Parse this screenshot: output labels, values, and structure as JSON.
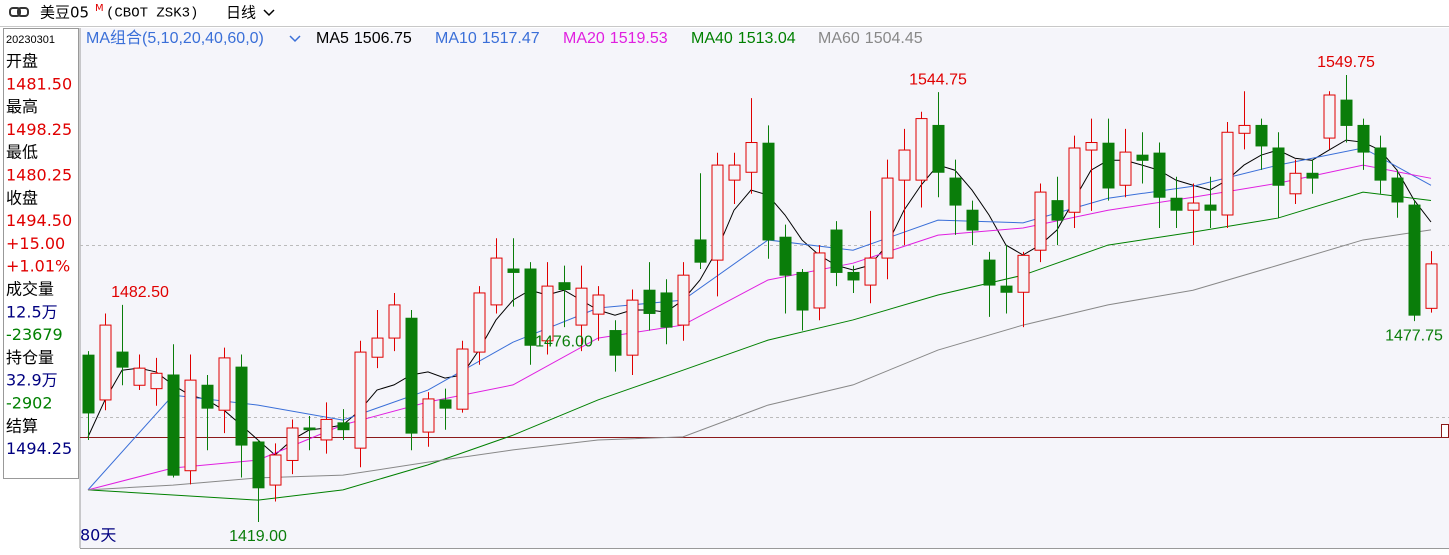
{
  "header": {
    "symbol": "美豆05",
    "symbol_sup": "M",
    "code": "(CBOT ZSK3)",
    "timeframe": "日线"
  },
  "info_panel": {
    "date": "20230301",
    "rows": [
      {
        "text": "开盘",
        "color": "#000000"
      },
      {
        "text": "1481.50",
        "color": "#e00000"
      },
      {
        "text": "最高",
        "color": "#000000"
      },
      {
        "text": "1498.25",
        "color": "#e00000"
      },
      {
        "text": "最低",
        "color": "#000000"
      },
      {
        "text": "1480.25",
        "color": "#e00000"
      },
      {
        "text": "收盘",
        "color": "#000000"
      },
      {
        "text": "1494.50",
        "color": "#e00000"
      },
      {
        "text": "+15.00",
        "color": "#e00000"
      },
      {
        "text": "+1.01%",
        "color": "#e00000"
      },
      {
        "text": "成交量",
        "color": "#000000"
      },
      {
        "text": "12.5万",
        "color": "#000080"
      },
      {
        "text": "-23679",
        "color": "#008000"
      },
      {
        "text": "持仓量",
        "color": "#000000"
      },
      {
        "text": "32.9万",
        "color": "#000080"
      },
      {
        "text": "-2902",
        "color": "#008000"
      },
      {
        "text": "结算",
        "color": "#000000"
      },
      {
        "text": "1494.25",
        "color": "#000080"
      }
    ]
  },
  "chart_data": {
    "type": "candlestick",
    "ma_group_label": "MA组合(5,10,20,40,60,0)",
    "period_label": "80天",
    "up_color": "#e00000",
    "down_color": "#0a7d0a",
    "candles": {
      "open": [
        1467.8,
        1454.7,
        1468.7,
        1459,
        1458,
        1462,
        1434,
        1459,
        1451.7,
        1464.3,
        1442.4,
        1429.8,
        1437,
        1446.5,
        1443,
        1448,
        1440.6,
        1467.2,
        1472.8,
        1478.6,
        1445.3,
        1454.7,
        1452,
        1468.7,
        1482.5,
        1493,
        1493,
        1472,
        1489,
        1476.6,
        1479.8,
        1475,
        1467.8,
        1486.8,
        1486,
        1476.6,
        1501.5,
        1495.6,
        1519,
        1521.3,
        1529.8,
        1502.3,
        1492,
        1481.6,
        1504.4,
        1492,
        1488.3,
        1496.2,
        1519,
        1519,
        1535,
        1519.6,
        1510.2,
        1495.6,
        1488,
        1486.2,
        1498.5,
        1513,
        1509.6,
        1527.8,
        1529.8,
        1517.5,
        1526.3,
        1526.9,
        1513.7,
        1510.2,
        1511.7,
        1508.8,
        1532.7,
        1535,
        1528.4,
        1515,
        1521,
        1531.3,
        1542.4,
        1535,
        1528.4,
        1519.6,
        1511.7,
        1481.5
      ],
      "high": [
        1469,
        1480,
        1482.5,
        1468,
        1467,
        1471,
        1468,
        1462,
        1470,
        1468,
        1443,
        1442,
        1449,
        1450,
        1454,
        1452,
        1472,
        1481,
        1486,
        1481,
        1457,
        1458,
        1472,
        1488,
        1502,
        1502,
        1495,
        1495,
        1494,
        1494,
        1488,
        1478,
        1487,
        1495,
        1490,
        1495,
        1521,
        1527,
        1527,
        1543,
        1535,
        1506,
        1493,
        1500,
        1507,
        1494,
        1510,
        1525,
        1534,
        1539,
        1544.75,
        1525,
        1513,
        1498,
        1500,
        1498,
        1518,
        1520,
        1532,
        1537,
        1537,
        1534,
        1533,
        1530,
        1520,
        1518,
        1520,
        1536,
        1545,
        1537,
        1533,
        1525,
        1525,
        1545,
        1549.75,
        1537,
        1532,
        1522,
        1513,
        1498.25
      ],
      "low": [
        1443,
        1451.7,
        1459,
        1457.6,
        1453,
        1432,
        1430,
        1440,
        1445,
        1432,
        1419,
        1425,
        1433,
        1440,
        1439,
        1443,
        1435,
        1464,
        1469,
        1440,
        1441,
        1446,
        1451,
        1465,
        1480,
        1482,
        1465,
        1468,
        1476,
        1469,
        1472,
        1463,
        1462,
        1475,
        1471,
        1472,
        1493,
        1485,
        1512,
        1515,
        1496,
        1480,
        1475,
        1478,
        1488,
        1486,
        1483,
        1490,
        1500,
        1511,
        1514,
        1503,
        1500,
        1479,
        1480,
        1476,
        1495,
        1500,
        1505,
        1510,
        1513,
        1514,
        1518,
        1505,
        1505,
        1500,
        1505,
        1505,
        1528,
        1522,
        1508,
        1512,
        1515,
        1528,
        1530,
        1522,
        1515,
        1508,
        1477.75,
        1480.25
      ],
      "close": [
        1450.9,
        1476.6,
        1464.3,
        1464,
        1462.5,
        1432.7,
        1460.5,
        1452.3,
        1467,
        1441.5,
        1429,
        1438.6,
        1446.5,
        1446,
        1449,
        1446,
        1468.7,
        1472.8,
        1482.5,
        1445,
        1455,
        1452.3,
        1469.6,
        1486,
        1496.2,
        1492,
        1470.7,
        1488,
        1487,
        1487.4,
        1485.4,
        1467.8,
        1483.9,
        1480,
        1476,
        1491.2,
        1495,
        1523.4,
        1523.4,
        1530,
        1501.5,
        1491.2,
        1481,
        1497.7,
        1492,
        1489.8,
        1496.2,
        1519.6,
        1527.8,
        1537,
        1521.3,
        1511.7,
        1504.4,
        1488.3,
        1486.2,
        1497,
        1515.5,
        1507.3,
        1528.4,
        1530,
        1516.7,
        1527.2,
        1524.8,
        1514,
        1510.2,
        1512.3,
        1510.2,
        1533,
        1535,
        1529,
        1517.5,
        1521,
        1519.6,
        1543.9,
        1535,
        1527.2,
        1519,
        1512.6,
        1479.5,
        1494.5
      ]
    },
    "series": [
      {
        "name": "MA5",
        "color": "#000000",
        "values": [
          1443.9,
          1454.7,
          1463.4,
          1464.0,
          1462.9,
          1459.1,
          1456.1,
          1454.7,
          1451.7,
          1447.4,
          1443.0,
          1438.6,
          1443.0,
          1445.9,
          1446.5,
          1447.4,
          1451.7,
          1457.6,
          1459.1,
          1462.0,
          1462.9,
          1461.1,
          1462.0,
          1469.3,
          1478.1,
          1483.9,
          1486.8,
          1485.4,
          1486.8,
          1483.9,
          1481.0,
          1479.5,
          1481.0,
          1481.0,
          1480.4,
          1483.9,
          1489.8,
          1498.5,
          1510.2,
          1516.1,
          1514.6,
          1508.8,
          1501.5,
          1497.1,
          1494.1,
          1492.7,
          1494.1,
          1500.0,
          1510.2,
          1517.5,
          1523.4,
          1521.9,
          1516.1,
          1508.8,
          1500.0,
          1497.1,
          1500.0,
          1504.4,
          1513.2,
          1521.9,
          1524.8,
          1524.8,
          1523.4,
          1521.9,
          1519.0,
          1517.5,
          1516.1,
          1519.0,
          1523.4,
          1526.3,
          1527.8,
          1525.4,
          1524.8,
          1527.8,
          1530.7,
          1530.1,
          1527.8,
          1521.9,
          1513.2,
          1506.75
        ]
      },
      {
        "name": "MA10",
        "color": "#3a6fd8",
        "x": [
          0,
          5,
          10,
          15,
          20,
          25,
          30,
          35,
          40,
          45,
          50,
          55,
          60,
          65,
          70,
          75,
          79
        ],
        "values": [
          1428.4,
          1456.1,
          1453.2,
          1448.8,
          1457.6,
          1471.6,
          1481.6,
          1483.9,
          1501.5,
          1498.5,
          1507.3,
          1506.5,
          1513.7,
          1517.2,
          1523.4,
          1528.4,
          1517.47
        ]
      },
      {
        "name": "MA20",
        "color": "#e020e0",
        "x": [
          0,
          5,
          10,
          15,
          20,
          25,
          30,
          35,
          40,
          45,
          50,
          55,
          60,
          65,
          70,
          75,
          79
        ],
        "values": [
          1428.4,
          1434.8,
          1437.1,
          1447.4,
          1454.1,
          1459.1,
          1472.8,
          1476.6,
          1489.8,
          1494.7,
          1502.9,
          1505.0,
          1510.2,
          1514.0,
          1518.1,
          1523.4,
          1519.53
        ]
      },
      {
        "name": "MA40",
        "color": "#008000",
        "x": [
          0,
          5,
          10,
          15,
          20,
          25,
          30,
          35,
          40,
          45,
          50,
          55,
          60,
          65,
          70,
          75,
          79
        ],
        "values": [
          1428.4,
          1426.9,
          1425.4,
          1428.4,
          1435.7,
          1444.4,
          1454.7,
          1463.4,
          1472.2,
          1478.1,
          1485.4,
          1491.2,
          1500.0,
          1503.8,
          1507.9,
          1515.5,
          1513.04
        ]
      },
      {
        "name": "MA60",
        "color": "#888888",
        "x": [
          0,
          5,
          10,
          15,
          20,
          25,
          30,
          35,
          40,
          45,
          50,
          55,
          60,
          65,
          70,
          75,
          79
        ],
        "values": [
          1428.4,
          1429.8,
          1431.9,
          1432.7,
          1436.5,
          1440.1,
          1443.0,
          1443.9,
          1453.2,
          1459.1,
          1469.3,
          1476.6,
          1482.5,
          1486.8,
          1494.1,
          1501.5,
          1504.45
        ]
      }
    ],
    "extremes": [
      {
        "value": 1482.5,
        "label": "1482.50"
      },
      {
        "value": 1419,
        "label": "1419.00"
      },
      {
        "value": 1544.75,
        "label": "1544.75"
      },
      {
        "value": 1476,
        "label": "1476.00"
      },
      {
        "value": 1549.75,
        "label": "1549.75"
      },
      {
        "value": 1477.75,
        "label": "1477.75"
      }
    ]
  }
}
